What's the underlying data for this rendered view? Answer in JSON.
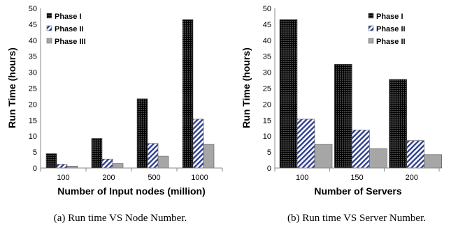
{
  "chart_data": [
    {
      "type": "bar",
      "caption": "(a) Run time VS Node Number.",
      "xlabel": "Number of Input nodes (million)",
      "ylabel": "Run Time (hours)",
      "categories": [
        "100",
        "200",
        "500",
        "1000"
      ],
      "ylim": [
        0,
        50
      ],
      "yticks": [
        0,
        5,
        10,
        15,
        20,
        25,
        30,
        35,
        40,
        45,
        50
      ],
      "legend_position": "top-left",
      "grid": false,
      "series": [
        {
          "name": "Phase I",
          "pattern": "dots",
          "values": [
            4.5,
            9.3,
            21.7,
            46.5
          ]
        },
        {
          "name": "Phase II",
          "pattern": "hatch",
          "values": [
            1.2,
            2.8,
            7.7,
            15.3
          ]
        },
        {
          "name": "Phase III",
          "pattern": "gray",
          "values": [
            0.6,
            1.4,
            3.7,
            7.4
          ]
        }
      ]
    },
    {
      "type": "bar",
      "caption": "(b) Run time VS Server Number.",
      "xlabel": "Number of Servers",
      "ylabel": "Run Time (hours)",
      "categories": [
        "100",
        "150",
        "200"
      ],
      "ylim": [
        0,
        50
      ],
      "yticks": [
        0,
        5,
        10,
        15,
        20,
        25,
        30,
        35,
        40,
        45,
        50
      ],
      "legend_position": "top-right",
      "grid": false,
      "series": [
        {
          "name": "Phase I",
          "pattern": "dots",
          "values": [
            46.5,
            32.5,
            27.8
          ]
        },
        {
          "name": "Phase II",
          "pattern": "hatch",
          "values": [
            15.3,
            11.9,
            8.6
          ]
        },
        {
          "name": "Phase II",
          "pattern": "gray",
          "values": [
            7.4,
            6.1,
            4.2
          ]
        }
      ]
    }
  ]
}
